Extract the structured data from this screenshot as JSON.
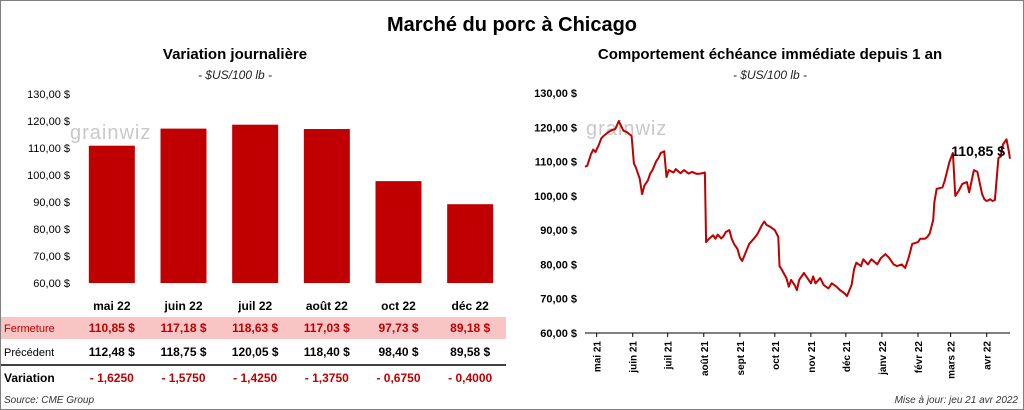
{
  "title": "Marché du porc à Chicago",
  "left": {
    "title": "Variation journalière",
    "unit": "- $US/100 lb -"
  },
  "right": {
    "title": "Comportement échéance immédiate depuis 1 an",
    "unit": "- $US/100 lb -",
    "last_label": "110,85 $"
  },
  "table": {
    "rows": [
      {
        "label": "Fermeture",
        "values": [
          "110,85  $",
          "117,18  $",
          "118,63  $",
          "117,03  $",
          "97,73  $",
          "89,18  $"
        ]
      },
      {
        "label": "Précédent",
        "values": [
          "112,48  $",
          "118,75  $",
          "120,05  $",
          "118,40  $",
          "98,40  $",
          "89,58  $"
        ]
      },
      {
        "label": "Variation",
        "values": [
          "- 1,6250",
          "- 1,5750",
          "- 1,4250",
          "- 1,3750",
          "- 0,6750",
          "- 0,4000"
        ]
      }
    ]
  },
  "watermark": "grainwiz",
  "source": "Source: CME Group",
  "updated": "Mise à jour: jeu 21 avr 2022",
  "colors": {
    "bar": "#c00000",
    "line": "#c00000",
    "fermeture_bg": "#f8c4c4",
    "neg": "#c00000"
  },
  "chart_data": [
    {
      "type": "bar",
      "title": "Variation journalière",
      "categories": [
        "mai 22",
        "juin 22",
        "juil 22",
        "août 22",
        "oct 22",
        "déc 22"
      ],
      "values": [
        110.85,
        117.18,
        118.63,
        117.03,
        97.73,
        89.18
      ],
      "ylim": [
        60,
        130
      ],
      "yticks": [
        "60,00 $",
        "70,00 $",
        "80,00 $",
        "90,00 $",
        "100,00 $",
        "110,00 $",
        "120,00 $",
        "130,00 $"
      ],
      "grid": false
    },
    {
      "type": "line",
      "title": "Comportement échéance immédiate depuis 1 an",
      "ylim": [
        60,
        130
      ],
      "yticks": [
        "60,00 $",
        "70,00 $",
        "80,00 $",
        "90,00 $",
        "100,00 $",
        "110,00 $",
        "120,00 $",
        "130,00 $"
      ],
      "xticks": [
        "mai 21",
        "juin 21",
        "juil 21",
        "août 21",
        "sept 21",
        "oct 21",
        "nov 21",
        "déc 21",
        "janv 22",
        "févr 22",
        "mars 22",
        "avr 22"
      ],
      "xlim": [
        "2021-04-21",
        "2022-04-21"
      ],
      "series": [
        {
          "points": [
            [
              "2021-04-21",
              108.5
            ],
            [
              "2021-04-23",
              108.8
            ],
            [
              "2021-04-26",
              112.0
            ],
            [
              "2021-04-28",
              113.5
            ],
            [
              "2021-04-30",
              112.8
            ],
            [
              "2021-05-03",
              115.0
            ],
            [
              "2021-05-05",
              116.8
            ],
            [
              "2021-05-07",
              117.5
            ],
            [
              "2021-05-10",
              118.3
            ],
            [
              "2021-05-13",
              119.0
            ],
            [
              "2021-05-17",
              119.5
            ],
            [
              "2021-05-20",
              121.8
            ],
            [
              "2021-05-24",
              119.0
            ],
            [
              "2021-05-27",
              118.6
            ],
            [
              "2021-05-31",
              117.5
            ],
            [
              "2021-06-02",
              109.5
            ],
            [
              "2021-06-04",
              108.0
            ],
            [
              "2021-06-07",
              105.0
            ],
            [
              "2021-06-09",
              100.5
            ],
            [
              "2021-06-11",
              103.0
            ],
            [
              "2021-06-14",
              104.5
            ],
            [
              "2021-06-16",
              106.5
            ],
            [
              "2021-06-18",
              107.5
            ],
            [
              "2021-06-21",
              110.0
            ],
            [
              "2021-06-23",
              111.0
            ],
            [
              "2021-06-25",
              112.5
            ],
            [
              "2021-06-28",
              113.0
            ],
            [
              "2021-06-30",
              105.5
            ],
            [
              "2021-07-02",
              107.5
            ],
            [
              "2021-07-06",
              106.8
            ],
            [
              "2021-07-08",
              107.8
            ],
            [
              "2021-07-12",
              106.6
            ],
            [
              "2021-07-15",
              107.5
            ],
            [
              "2021-07-19",
              106.5
            ],
            [
              "2021-07-22",
              107.0
            ],
            [
              "2021-07-26",
              106.4
            ],
            [
              "2021-07-29",
              106.5
            ],
            [
              "2021-08-02",
              106.8
            ],
            [
              "2021-08-03",
              86.5
            ],
            [
              "2021-08-05",
              87.3
            ],
            [
              "2021-08-09",
              88.5
            ],
            [
              "2021-08-11",
              87.5
            ],
            [
              "2021-08-13",
              88.7
            ],
            [
              "2021-08-16",
              87.6
            ],
            [
              "2021-08-18",
              88.3
            ],
            [
              "2021-08-20",
              89.5
            ],
            [
              "2021-08-23",
              90.0
            ],
            [
              "2021-08-25",
              87.5
            ],
            [
              "2021-08-27",
              86.0
            ],
            [
              "2021-08-30",
              84.5
            ],
            [
              "2021-09-01",
              82.0
            ],
            [
              "2021-09-03",
              81.0
            ],
            [
              "2021-09-06",
              83.5
            ],
            [
              "2021-09-09",
              86.0
            ],
            [
              "2021-09-13",
              87.5
            ],
            [
              "2021-09-16",
              88.8
            ],
            [
              "2021-09-20",
              91.5
            ],
            [
              "2021-09-22",
              92.5
            ],
            [
              "2021-09-24",
              91.5
            ],
            [
              "2021-09-27",
              91.0
            ],
            [
              "2021-09-29",
              90.5
            ],
            [
              "2021-10-01",
              90.0
            ],
            [
              "2021-10-04",
              88.0
            ],
            [
              "2021-10-05",
              79.5
            ],
            [
              "2021-10-07",
              78.5
            ],
            [
              "2021-10-11",
              76.0
            ],
            [
              "2021-10-13",
              73.5
            ],
            [
              "2021-10-15",
              75.5
            ],
            [
              "2021-10-18",
              74.0
            ],
            [
              "2021-10-20",
              72.5
            ],
            [
              "2021-10-22",
              75.5
            ],
            [
              "2021-10-26",
              77.5
            ],
            [
              "2021-10-29",
              76.0
            ],
            [
              "2021-11-01",
              74.5
            ],
            [
              "2021-11-03",
              76.5
            ],
            [
              "2021-11-05",
              74.5
            ],
            [
              "2021-11-09",
              76.0
            ],
            [
              "2021-11-12",
              74.0
            ],
            [
              "2021-11-16",
              73.0
            ],
            [
              "2021-11-19",
              74.5
            ],
            [
              "2021-11-23",
              73.5
            ],
            [
              "2021-11-26",
              72.5
            ],
            [
              "2021-11-30",
              71.5
            ],
            [
              "2021-12-02",
              70.8
            ],
            [
              "2021-12-06",
              74.0
            ],
            [
              "2021-12-08",
              78.5
            ],
            [
              "2021-12-10",
              80.5
            ],
            [
              "2021-12-14",
              79.5
            ],
            [
              "2021-12-16",
              81.5
            ],
            [
              "2021-12-20",
              80.0
            ],
            [
              "2021-12-23",
              81.5
            ],
            [
              "2021-12-28",
              80.0
            ],
            [
              "2021-12-31",
              81.8
            ],
            [
              "2022-01-04",
              83.0
            ],
            [
              "2022-01-07",
              82.0
            ],
            [
              "2022-01-11",
              80.0
            ],
            [
              "2022-01-14",
              79.5
            ],
            [
              "2022-01-18",
              80.0
            ],
            [
              "2022-01-21",
              79.0
            ],
            [
              "2022-01-24",
              82.0
            ],
            [
              "2022-01-27",
              86.0
            ],
            [
              "2022-02-01",
              86.5
            ],
            [
              "2022-02-03",
              87.5
            ],
            [
              "2022-02-07",
              87.5
            ],
            [
              "2022-02-09",
              88.0
            ],
            [
              "2022-02-11",
              89.0
            ],
            [
              "2022-02-14",
              93.0
            ],
            [
              "2022-02-15",
              98.0
            ],
            [
              "2022-02-17",
              102.0
            ],
            [
              "2022-02-22",
              102.5
            ],
            [
              "2022-02-24",
              104.5
            ],
            [
              "2022-02-28",
              110.0
            ],
            [
              "2022-03-03",
              112.5
            ],
            [
              "2022-03-05",
              100.0
            ],
            [
              "2022-03-08",
              101.5
            ],
            [
              "2022-03-11",
              103.5
            ],
            [
              "2022-03-15",
              104.0
            ],
            [
              "2022-03-17",
              101.0
            ],
            [
              "2022-03-21",
              107.5
            ],
            [
              "2022-03-24",
              107.0
            ],
            [
              "2022-03-28",
              100.5
            ],
            [
              "2022-03-30",
              99.0
            ],
            [
              "2022-04-01",
              98.5
            ],
            [
              "2022-04-04",
              99.0
            ],
            [
              "2022-04-06",
              98.5
            ],
            [
              "2022-04-08",
              98.8
            ],
            [
              "2022-04-11",
              111.0
            ],
            [
              "2022-04-13",
              111.5
            ],
            [
              "2022-04-15",
              115.0
            ],
            [
              "2022-04-18",
              116.5
            ],
            [
              "2022-04-20",
              113.0
            ],
            [
              "2022-04-21",
              110.85
            ]
          ]
        }
      ]
    }
  ]
}
